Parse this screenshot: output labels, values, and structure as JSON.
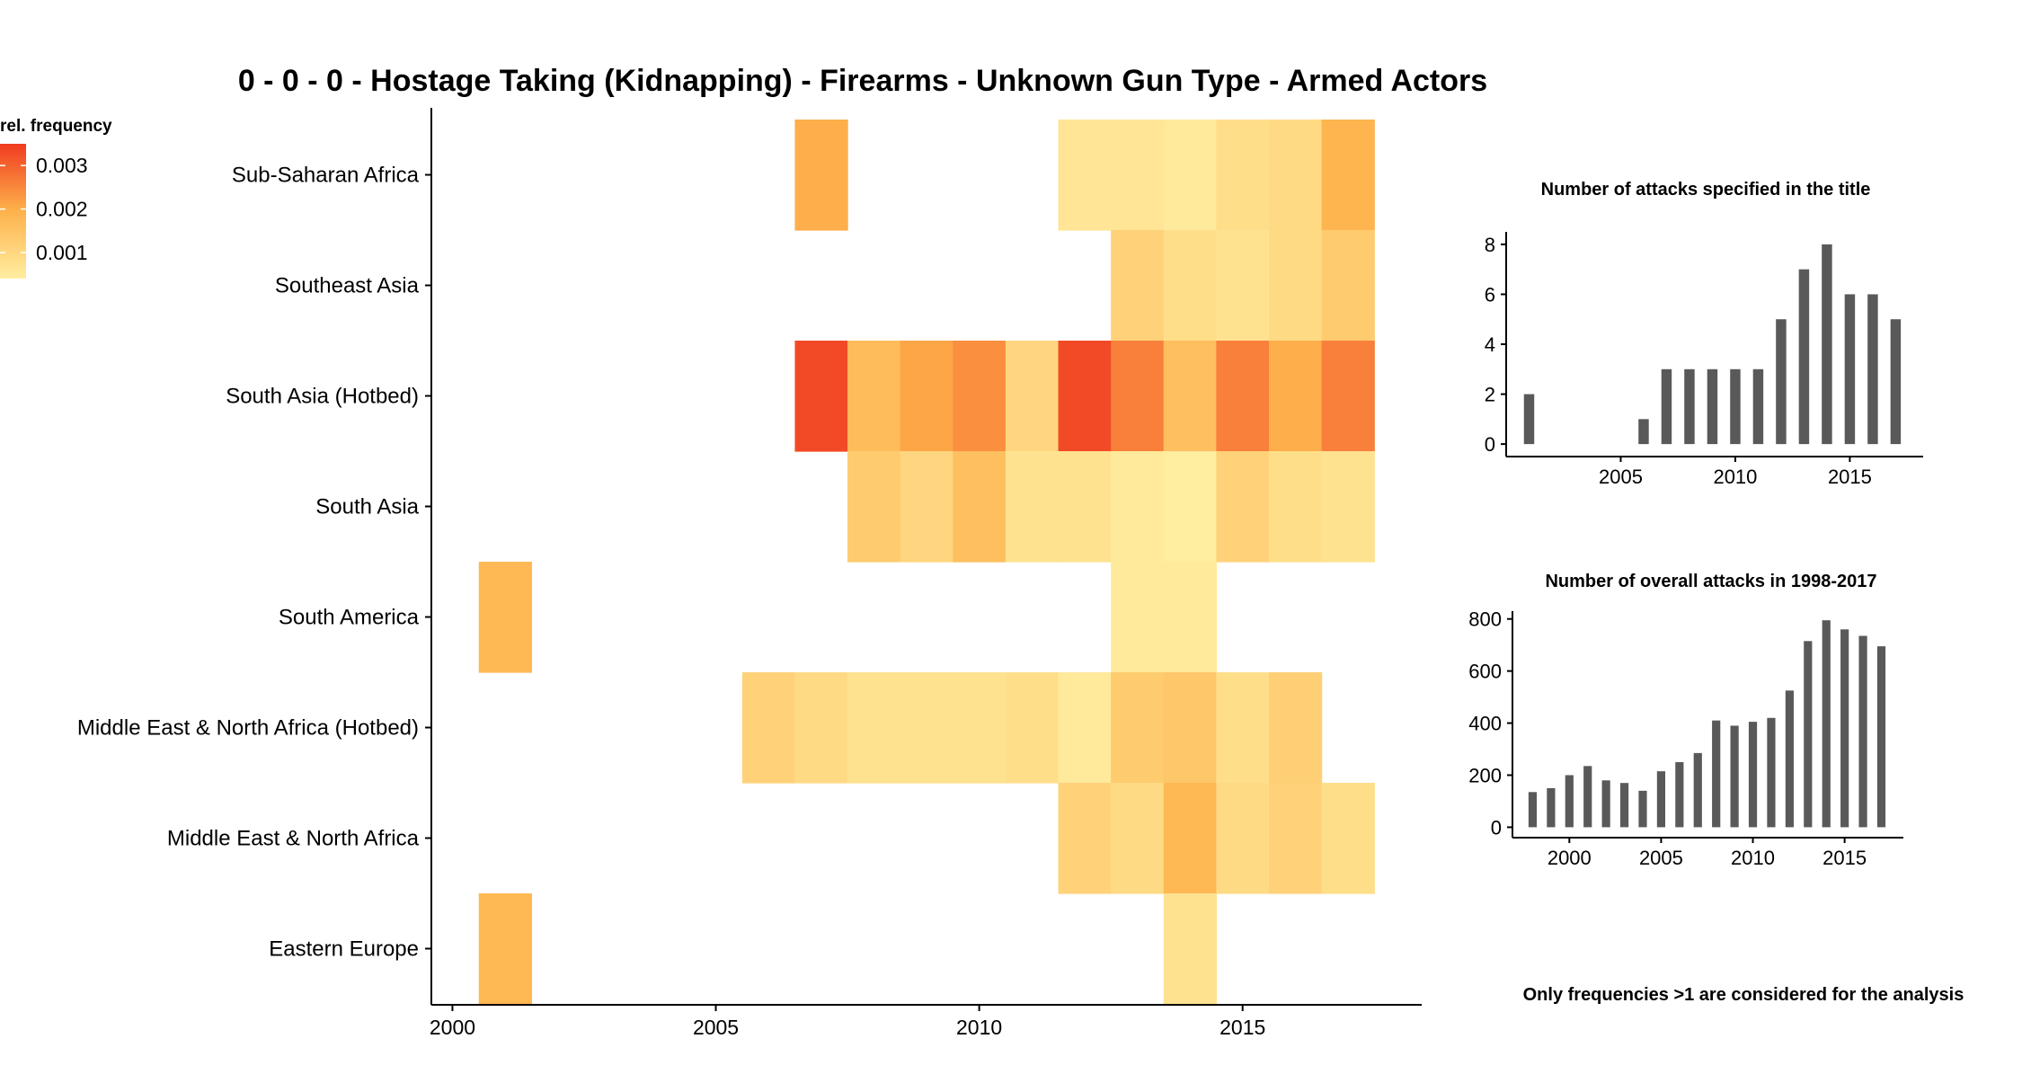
{
  "title": "0 - 0 - 0 - Hostage Taking (Kidnapping) - Firearms - Unknown Gun Type - Armed Actors",
  "footnote": "Only frequencies >1 are considered for the analysis",
  "colors": {
    "low": "#ffeda0",
    "mid": "#feb24c",
    "high": "#f03b20",
    "bar": "#595959",
    "axis": "#000000"
  },
  "chart_data": [
    {
      "type": "heatmap",
      "legend_title": "rel. frequency",
      "legend_ticks": [
        0.001,
        0.002,
        0.003
      ],
      "legend_range": [
        0.0004,
        0.0035
      ],
      "legend_placement": "top-left",
      "x_ticks": [
        2000,
        2005,
        2010,
        2015
      ],
      "x_range": [
        1999.6,
        2018.4
      ],
      "rows": [
        "Sub-Saharan Africa",
        "Southeast Asia",
        "South Asia (Hotbed)",
        "South Asia",
        "South America",
        "Middle East & North Africa (Hotbed)",
        "Middle East & North Africa",
        "Eastern Europe"
      ],
      "cells": [
        {
          "row": "Sub-Saharan Africa",
          "x": 2007,
          "v": 0.002
        },
        {
          "row": "Sub-Saharan Africa",
          "x": 2012,
          "v": 0.0006
        },
        {
          "row": "Sub-Saharan Africa",
          "x": 2013,
          "v": 0.0006
        },
        {
          "row": "Sub-Saharan Africa",
          "x": 2014,
          "v": 0.0005
        },
        {
          "row": "Sub-Saharan Africa",
          "x": 2015,
          "v": 0.0008
        },
        {
          "row": "Sub-Saharan Africa",
          "x": 2016,
          "v": 0.0009
        },
        {
          "row": "Sub-Saharan Africa",
          "x": 2017,
          "v": 0.0019
        },
        {
          "row": "Southeast Asia",
          "x": 2013,
          "v": 0.0011
        },
        {
          "row": "Southeast Asia",
          "x": 2014,
          "v": 0.0008
        },
        {
          "row": "Southeast Asia",
          "x": 2015,
          "v": 0.0007
        },
        {
          "row": "Southeast Asia",
          "x": 2016,
          "v": 0.0009
        },
        {
          "row": "Southeast Asia",
          "x": 2017,
          "v": 0.0013
        },
        {
          "row": "South Asia (Hotbed)",
          "x": 2007,
          "v": 0.0033
        },
        {
          "row": "South Asia (Hotbed)",
          "x": 2008,
          "v": 0.0017
        },
        {
          "row": "South Asia (Hotbed)",
          "x": 2009,
          "v": 0.0021
        },
        {
          "row": "South Asia (Hotbed)",
          "x": 2010,
          "v": 0.0024
        },
        {
          "row": "South Asia (Hotbed)",
          "x": 2011,
          "v": 0.001
        },
        {
          "row": "South Asia (Hotbed)",
          "x": 2012,
          "v": 0.0033
        },
        {
          "row": "South Asia (Hotbed)",
          "x": 2013,
          "v": 0.0026
        },
        {
          "row": "South Asia (Hotbed)",
          "x": 2014,
          "v": 0.0016
        },
        {
          "row": "South Asia (Hotbed)",
          "x": 2015,
          "v": 0.0026
        },
        {
          "row": "South Asia (Hotbed)",
          "x": 2016,
          "v": 0.002
        },
        {
          "row": "South Asia (Hotbed)",
          "x": 2017,
          "v": 0.0026
        },
        {
          "row": "South Asia",
          "x": 2008,
          "v": 0.0013
        },
        {
          "row": "South Asia",
          "x": 2009,
          "v": 0.001
        },
        {
          "row": "South Asia",
          "x": 2010,
          "v": 0.0016
        },
        {
          "row": "South Asia",
          "x": 2011,
          "v": 0.0007
        },
        {
          "row": "South Asia",
          "x": 2012,
          "v": 0.0007
        },
        {
          "row": "South Asia",
          "x": 2013,
          "v": 0.0005
        },
        {
          "row": "South Asia",
          "x": 2014,
          "v": 0.0004
        },
        {
          "row": "South Asia",
          "x": 2015,
          "v": 0.0011
        },
        {
          "row": "South Asia",
          "x": 2016,
          "v": 0.0008
        },
        {
          "row": "South Asia",
          "x": 2017,
          "v": 0.0007
        },
        {
          "row": "South America",
          "x": 2001,
          "v": 0.0018
        },
        {
          "row": "South America",
          "x": 2013,
          "v": 0.0005
        },
        {
          "row": "South America",
          "x": 2014,
          "v": 0.0005
        },
        {
          "row": "Middle East & North Africa (Hotbed)",
          "x": 2006,
          "v": 0.0011
        },
        {
          "row": "Middle East & North Africa (Hotbed)",
          "x": 2007,
          "v": 0.0009
        },
        {
          "row": "Middle East & North Africa (Hotbed)",
          "x": 2008,
          "v": 0.0007
        },
        {
          "row": "Middle East & North Africa (Hotbed)",
          "x": 2009,
          "v": 0.0007
        },
        {
          "row": "Middle East & North Africa (Hotbed)",
          "x": 2010,
          "v": 0.0007
        },
        {
          "row": "Middle East & North Africa (Hotbed)",
          "x": 2011,
          "v": 0.0008
        },
        {
          "row": "Middle East & North Africa (Hotbed)",
          "x": 2012,
          "v": 0.0005
        },
        {
          "row": "Middle East & North Africa (Hotbed)",
          "x": 2013,
          "v": 0.0013
        },
        {
          "row": "Middle East & North Africa (Hotbed)",
          "x": 2014,
          "v": 0.0014
        },
        {
          "row": "Middle East & North Africa (Hotbed)",
          "x": 2015,
          "v": 0.0008
        },
        {
          "row": "Middle East & North Africa (Hotbed)",
          "x": 2016,
          "v": 0.0012
        },
        {
          "row": "Middle East & North Africa",
          "x": 2012,
          "v": 0.0011
        },
        {
          "row": "Middle East & North Africa",
          "x": 2013,
          "v": 0.0009
        },
        {
          "row": "Middle East & North Africa",
          "x": 2014,
          "v": 0.0018
        },
        {
          "row": "Middle East & North Africa",
          "x": 2015,
          "v": 0.0009
        },
        {
          "row": "Middle East & North Africa",
          "x": 2016,
          "v": 0.0011
        },
        {
          "row": "Middle East & North Africa",
          "x": 2017,
          "v": 0.0008
        },
        {
          "row": "Eastern Europe",
          "x": 2001,
          "v": 0.0018
        },
        {
          "row": "Eastern Europe",
          "x": 2014,
          "v": 0.0007
        }
      ]
    },
    {
      "type": "bar",
      "title": "Number of attacks specified in the title",
      "x": [
        2001,
        2006,
        2007,
        2008,
        2009,
        2010,
        2011,
        2012,
        2013,
        2014,
        2015,
        2016,
        2017
      ],
      "values": [
        2,
        1,
        3,
        3,
        3,
        3,
        3,
        5,
        7,
        8,
        6,
        6,
        5
      ],
      "xlim": [
        2000.0,
        2018.2
      ],
      "ylim": [
        -0.5,
        8.5
      ],
      "x_ticks": [
        2005,
        2010,
        2015
      ],
      "y_ticks": [
        0,
        2,
        4,
        6,
        8
      ]
    },
    {
      "type": "bar",
      "title": "Number of overall attacks in 1998-2017",
      "x": [
        1998,
        1999,
        2000,
        2001,
        2002,
        2003,
        2004,
        2005,
        2006,
        2007,
        2008,
        2009,
        2010,
        2011,
        2012,
        2013,
        2014,
        2015,
        2016,
        2017
      ],
      "values": [
        135,
        150,
        200,
        235,
        180,
        170,
        140,
        215,
        250,
        285,
        410,
        390,
        405,
        420,
        525,
        715,
        795,
        760,
        735,
        695
      ],
      "xlim": [
        1996.9,
        2018.2
      ],
      "ylim": [
        -40,
        830
      ],
      "x_ticks": [
        2000,
        2005,
        2010,
        2015
      ],
      "y_ticks": [
        0,
        200,
        400,
        600,
        800
      ]
    }
  ]
}
